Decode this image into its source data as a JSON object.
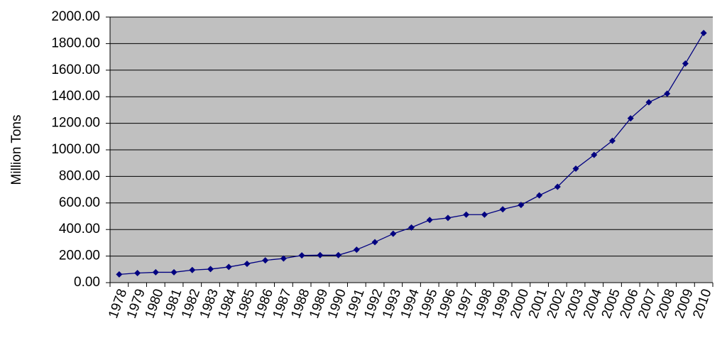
{
  "chart_data": {
    "type": "line",
    "y_label": "Million Tons",
    "categories": [
      "1978",
      "1979",
      "1980",
      "1981",
      "1982",
      "1983",
      "1984",
      "1985",
      "1986",
      "1987",
      "1988",
      "1989",
      "1990",
      "1991",
      "1992",
      "1993",
      "1994",
      "1995",
      "1996",
      "1997",
      "1998",
      "1999",
      "2000",
      "2001",
      "2002",
      "2003",
      "2004",
      "2005",
      "2006",
      "2007",
      "2008",
      "2009",
      "2010"
    ],
    "values": [
      62,
      72,
      78,
      78,
      95,
      102,
      118,
      142,
      168,
      182,
      205,
      207,
      207,
      248,
      305,
      368,
      415,
      472,
      487,
      512,
      512,
      552,
      585,
      657,
      722,
      858,
      962,
      1068,
      1237,
      1358,
      1423,
      1650,
      1880
    ],
    "color": "#000080",
    "plot_background": "#c0c0c0",
    "grid": true,
    "ylim": [
      0,
      2000
    ],
    "yticks": [
      {
        "value": 0,
        "label": "0.00"
      },
      {
        "value": 200,
        "label": "200.00"
      },
      {
        "value": 400,
        "label": "400.00"
      },
      {
        "value": 600,
        "label": "600.00"
      },
      {
        "value": 800,
        "label": "800.00"
      },
      {
        "value": 1000,
        "label": "1000.00"
      },
      {
        "value": 1200,
        "label": "1200.00"
      },
      {
        "value": 1400,
        "label": "1400.00"
      },
      {
        "value": 1600,
        "label": "1600.00"
      },
      {
        "value": 1800,
        "label": "1800.00"
      },
      {
        "value": 2000,
        "label": "2000.00"
      }
    ]
  }
}
